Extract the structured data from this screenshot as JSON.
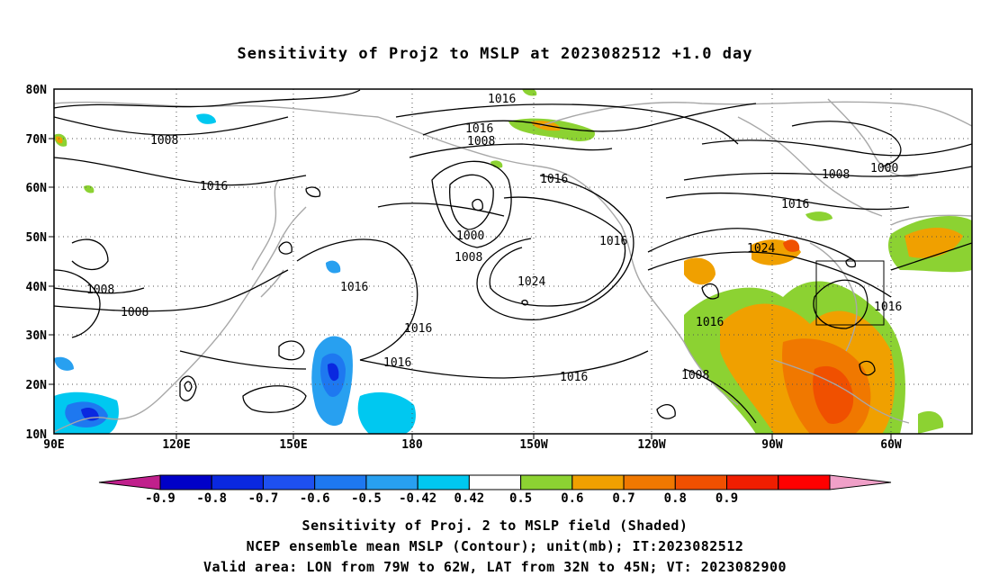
{
  "title": "Sensitivity of Proj2 to MSLP at 2023082512 +1.0 day",
  "lat_labels": [
    "80N",
    "70N",
    "60N",
    "50N",
    "40N",
    "30N",
    "20N",
    "10N"
  ],
  "lon_labels": [
    "90E",
    "120E",
    "150E",
    "180",
    "150W",
    "120W",
    "90W",
    "60W"
  ],
  "contour_labels": [
    "1016",
    "1016",
    "1008",
    "1008",
    "1016",
    "1016",
    "1000",
    "1008",
    "1016",
    "1016",
    "1024",
    "1016",
    "1016",
    "1016",
    "1008",
    "1008",
    "1016",
    "1008",
    "1016",
    "1024",
    "1008",
    "1000",
    "1016",
    "1016"
  ],
  "colorbar": {
    "labels": [
      "-0.9",
      "-0.8",
      "-0.7",
      "-0.6",
      "-0.5",
      "-0.42",
      "0.42",
      "0.5",
      "0.6",
      "0.7",
      "0.8",
      "0.9"
    ],
    "colors": [
      "#0000c8",
      "#0a28e0",
      "#1e50f0",
      "#1e78f0",
      "#28a0f0",
      "#00c8f0",
      "#ffffff",
      "#8cd232",
      "#f0a000",
      "#f07800",
      "#f05000",
      "#f01e00",
      "#ff0000"
    ],
    "low_end_color": "#c0208c",
    "high_end_color": "#f0a0c8"
  },
  "caption": {
    "line1": "Sensitivity of Proj. 2 to MSLP field (Shaded)",
    "line2": "NCEP ensemble mean MSLP (Contour); unit(mb); IT:2023082512",
    "line3": "Valid area: LON from 79W to 62W, LAT from 32N to 45N; VT: 2023082900"
  },
  "valid_area": {
    "lon_from": "79W",
    "lon_to": "62W",
    "lat_from": "32N",
    "lat_to": "45N"
  }
}
